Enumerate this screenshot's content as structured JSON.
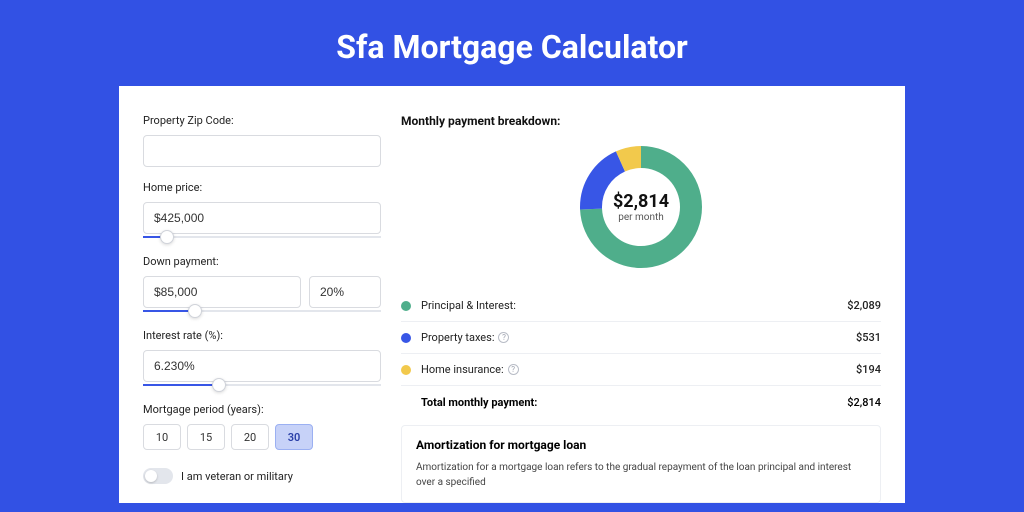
{
  "page": {
    "title": "Sfa Mortgage Calculator",
    "bg_color": "#3251e4"
  },
  "form": {
    "zip": {
      "label": "Property Zip Code:",
      "value": ""
    },
    "home_price": {
      "label": "Home price:",
      "value": "$425,000",
      "slider_pct": 10
    },
    "down_payment": {
      "label": "Down payment:",
      "amount": "$85,000",
      "percent": "20%",
      "slider_pct": 22
    },
    "interest_rate": {
      "label": "Interest rate (%):",
      "value": "6.230%",
      "slider_pct": 32
    },
    "period": {
      "label": "Mortgage period (years):",
      "options": [
        "10",
        "15",
        "20",
        "30"
      ],
      "selected": "30"
    },
    "veteran": {
      "label": "I am veteran or military",
      "on": false
    }
  },
  "breakdown": {
    "title": "Monthly payment breakdown:",
    "center_amount": "$2,814",
    "center_sub": "per month",
    "donut": {
      "radius": 50,
      "stroke": 22,
      "slices": [
        {
          "key": "pi",
          "color": "#4fae8b",
          "fraction": 0.742
        },
        {
          "key": "tax",
          "color": "#3856e6",
          "fraction": 0.189
        },
        {
          "key": "ins",
          "color": "#f2c94c",
          "fraction": 0.069
        }
      ]
    },
    "items": [
      {
        "key": "pi",
        "label": "Principal & Interest:",
        "value": "$2,089",
        "color": "#4fae8b",
        "help": false
      },
      {
        "key": "tax",
        "label": "Property taxes:",
        "value": "$531",
        "color": "#3856e6",
        "help": true
      },
      {
        "key": "ins",
        "label": "Home insurance:",
        "value": "$194",
        "color": "#f2c94c",
        "help": true
      }
    ],
    "total": {
      "label": "Total monthly payment:",
      "value": "$2,814"
    }
  },
  "amortization": {
    "title": "Amortization for mortgage loan",
    "body": "Amortization for a mortgage loan refers to the gradual repayment of the loan principal and interest over a specified"
  }
}
